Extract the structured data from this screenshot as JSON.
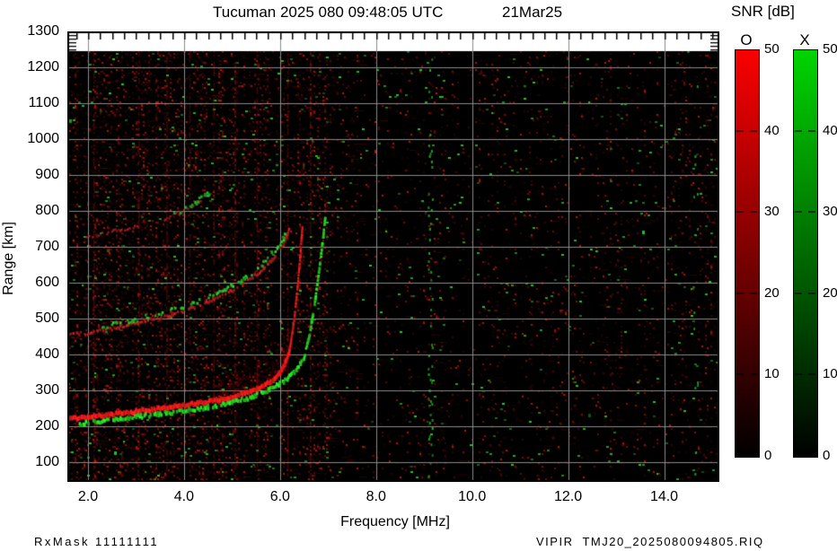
{
  "footer": {
    "left": "RxMask 11111111",
    "right": "VIPIR  TMJ20_2025080094805.RIQ"
  },
  "chart_data": {
    "type": "heatmap",
    "title": "Tucuman 2025 080 09:48:05 UTC",
    "date_label": "21Mar25",
    "xlabel": "Frequency [MHz]",
    "ylabel": "Range [km]",
    "x_range": [
      1.57,
      15.15
    ],
    "x_minor_step": 0.25,
    "y_top_km": 1300,
    "y_bottom_km": 45,
    "data_top_km": 1245,
    "y_minor": {
      "from": 1250,
      "to": 1290,
      "step": 10
    },
    "grid_color": "#8a8a8a",
    "background_color": "#000000",
    "x_ticks": [
      {
        "f": 2,
        "label": "2.0"
      },
      {
        "f": 4,
        "label": "4.0"
      },
      {
        "f": 6,
        "label": "6.0"
      },
      {
        "f": 8,
        "label": "8.0"
      },
      {
        "f": 10,
        "label": "10.0"
      },
      {
        "f": 12,
        "label": "12.0"
      },
      {
        "f": 14,
        "label": "14.0"
      }
    ],
    "y_ticks": [
      {
        "km": 1300,
        "label": "1300"
      },
      {
        "km": 1200,
        "label": "1200"
      },
      {
        "km": 1100,
        "label": "1100"
      },
      {
        "km": 1000,
        "label": "1000"
      },
      {
        "km": 900,
        "label": "900"
      },
      {
        "km": 800,
        "label": "800"
      },
      {
        "km": 700,
        "label": "700"
      },
      {
        "km": 600,
        "label": "600"
      },
      {
        "km": 500,
        "label": "500"
      },
      {
        "km": 400,
        "label": "400"
      },
      {
        "km": 300,
        "label": "300"
      },
      {
        "km": 200,
        "label": "200"
      },
      {
        "km": 100,
        "label": "100"
      }
    ],
    "colorbar": {
      "title": "SNR [dB]",
      "min": 0,
      "max": 50,
      "ticks": [
        {
          "v": 50,
          "label": "50",
          "dash": false
        },
        {
          "v": 40,
          "label": "40",
          "dash": true
        },
        {
          "v": 30,
          "label": "30",
          "dash": true
        },
        {
          "v": 20,
          "label": "20",
          "dash": true
        },
        {
          "v": 10,
          "label": "10",
          "dash": true
        },
        {
          "v": 0,
          "label": "0",
          "dash": false
        }
      ],
      "bars": [
        {
          "label": "O",
          "top_color": "#fa0000",
          "bottom_color": "#000000"
        },
        {
          "label": "X",
          "top_color": "#00d400",
          "bottom_color": "#000000"
        }
      ]
    },
    "noise": {
      "seed": 1337,
      "split_freq": 7.3,
      "left_density": 0.165,
      "right_density": 0.055,
      "green_prob_left": 0.011,
      "green_prob_right": 0.006,
      "h_dash_count": 650,
      "bright_columns": [
        2.12,
        3.06,
        3.64,
        4.12,
        4.62,
        5.06,
        5.52,
        6.16,
        6.63
      ],
      "green_bands": [
        {
          "f": 9.12,
          "p": 0.3
        },
        {
          "f": 14.65,
          "p": 0.16
        }
      ]
    },
    "glow": {
      "f_start": 4.6,
      "f_end": 6.3,
      "max_rise_km": 95,
      "alpha": 0.14
    },
    "traces": [
      {
        "name": "O-first-hop",
        "mode": "O",
        "color": [
          235,
          25,
          25
        ],
        "width": 5,
        "gap": 0,
        "jitter": 1.5,
        "points": [
          [
            1.57,
            220
          ],
          [
            2.0,
            226
          ],
          [
            2.5,
            233
          ],
          [
            3.0,
            241
          ],
          [
            3.5,
            249
          ],
          [
            4.0,
            258
          ],
          [
            4.5,
            268
          ],
          [
            5.0,
            281
          ],
          [
            5.4,
            297
          ],
          [
            5.8,
            322
          ],
          [
            6.0,
            348
          ],
          [
            6.1,
            372
          ],
          [
            6.2,
            410
          ]
        ]
      },
      {
        "name": "O-first-hop-cusp",
        "mode": "O",
        "color": [
          215,
          25,
          25
        ],
        "width": 2.5,
        "gap": 0.15,
        "jitter": 1,
        "points": [
          [
            6.2,
            410
          ],
          [
            6.3,
            500
          ],
          [
            6.36,
            580
          ],
          [
            6.42,
            670
          ],
          [
            6.47,
            762
          ]
        ]
      },
      {
        "name": "X-first-hop",
        "mode": "X",
        "color": [
          35,
          205,
          35
        ],
        "width": 4,
        "gap": 0.3,
        "jitter": 2,
        "points": [
          [
            1.8,
            206
          ],
          [
            2.5,
            218
          ],
          [
            3.0,
            226
          ],
          [
            3.5,
            234
          ],
          [
            4.0,
            243
          ],
          [
            4.5,
            253
          ],
          [
            5.0,
            266
          ],
          [
            5.4,
            281
          ],
          [
            5.8,
            303
          ],
          [
            6.1,
            327
          ],
          [
            6.3,
            350
          ],
          [
            6.5,
            390
          ]
        ]
      },
      {
        "name": "X-first-hop-cusp",
        "mode": "X",
        "color": [
          35,
          200,
          35
        ],
        "width": 3,
        "gap": 0.4,
        "jitter": 1.5,
        "points": [
          [
            6.5,
            390
          ],
          [
            6.62,
            460
          ],
          [
            6.72,
            540
          ],
          [
            6.82,
            640
          ],
          [
            6.9,
            730
          ],
          [
            6.94,
            782
          ]
        ]
      },
      {
        "name": "O-second-hop",
        "mode": "O",
        "color": [
          172,
          28,
          28
        ],
        "width": 3,
        "gap": 0.35,
        "jitter": 2,
        "points": [
          [
            1.57,
            452
          ],
          [
            2.2,
            464
          ],
          [
            3.0,
            486
          ],
          [
            3.6,
            505
          ],
          [
            4.2,
            530
          ],
          [
            4.8,
            562
          ],
          [
            5.2,
            592
          ],
          [
            5.6,
            630
          ],
          [
            5.9,
            672
          ],
          [
            6.1,
            715
          ],
          [
            6.2,
            755
          ]
        ]
      },
      {
        "name": "X-second-hop",
        "mode": "X",
        "color": [
          40,
          175,
          40
        ],
        "width": 3,
        "gap": 0.55,
        "jitter": 2.5,
        "points": [
          [
            2.3,
            478
          ],
          [
            3.0,
            497
          ],
          [
            3.6,
            517
          ],
          [
            4.2,
            543
          ],
          [
            4.8,
            576
          ],
          [
            5.2,
            606
          ],
          [
            5.6,
            645
          ],
          [
            5.9,
            688
          ],
          [
            6.1,
            730
          ]
        ]
      },
      {
        "name": "O-third-hop",
        "mode": "O",
        "color": [
          140,
          24,
          24
        ],
        "width": 2,
        "gap": 0.5,
        "jitter": 2,
        "points": [
          [
            3.55,
            775
          ],
          [
            4.0,
            800
          ],
          [
            4.35,
            828
          ]
        ]
      },
      {
        "name": "X-third-hop",
        "mode": "X",
        "color": [
          40,
          165,
          40
        ],
        "width": 3,
        "gap": 0.5,
        "jitter": 2.5,
        "points": [
          [
            3.75,
            788
          ],
          [
            4.15,
            815
          ],
          [
            4.55,
            852
          ]
        ]
      },
      {
        "name": "oblique-streak",
        "mode": "O",
        "color": [
          150,
          26,
          26
        ],
        "width": 2.5,
        "gap": 0.45,
        "jitter": 2,
        "points": [
          [
            1.7,
            716
          ],
          [
            2.4,
            740
          ],
          [
            3.05,
            758
          ]
        ]
      }
    ]
  }
}
